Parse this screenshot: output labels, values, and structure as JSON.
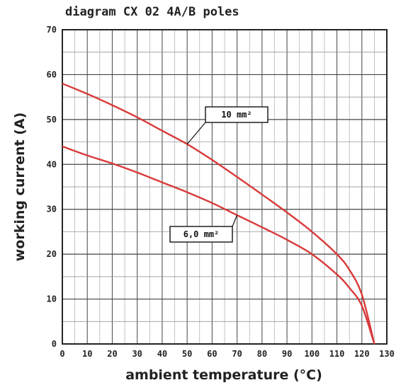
{
  "chart_data": {
    "type": "line",
    "title": "diagram CX 02 4A/B poles",
    "xlabel": "ambient temperature (°C)",
    "ylabel": "working current (A)",
    "xlim": [
      0,
      130
    ],
    "ylim": [
      0,
      70
    ],
    "x_ticks": [
      "0",
      "10",
      "20",
      "30",
      "40",
      "50",
      "60",
      "70",
      "80",
      "90",
      "100",
      "110",
      "120",
      "130"
    ],
    "y_ticks": [
      "0",
      "10",
      "20",
      "30",
      "40",
      "50",
      "60",
      "70"
    ],
    "grid": true,
    "line_color": "#d93a3a",
    "series": [
      {
        "name": "10 mm²",
        "x": [
          0,
          10,
          20,
          30,
          40,
          50,
          60,
          70,
          80,
          90,
          100,
          110,
          115,
          120,
          125
        ],
        "y": [
          58,
          55.7,
          53.2,
          50.5,
          47.5,
          44.5,
          41,
          37.2,
          33.3,
          29.3,
          25,
          20,
          16.5,
          11,
          0
        ]
      },
      {
        "name": "6,0 mm²",
        "x": [
          0,
          10,
          20,
          30,
          40,
          50,
          60,
          70,
          80,
          90,
          100,
          110,
          115,
          120,
          125
        ],
        "y": [
          44,
          42,
          40.2,
          38.2,
          36,
          33.8,
          31.4,
          28.7,
          26,
          23.2,
          20,
          15.5,
          12.5,
          8.5,
          0
        ]
      }
    ],
    "annotations": [
      {
        "text": "10 mm²",
        "series": "10 mm²",
        "x": 50,
        "y": 44.5
      },
      {
        "text": "6,0 mm²",
        "series": "6,0 mm²",
        "x": 70,
        "y": 28.7
      }
    ]
  }
}
